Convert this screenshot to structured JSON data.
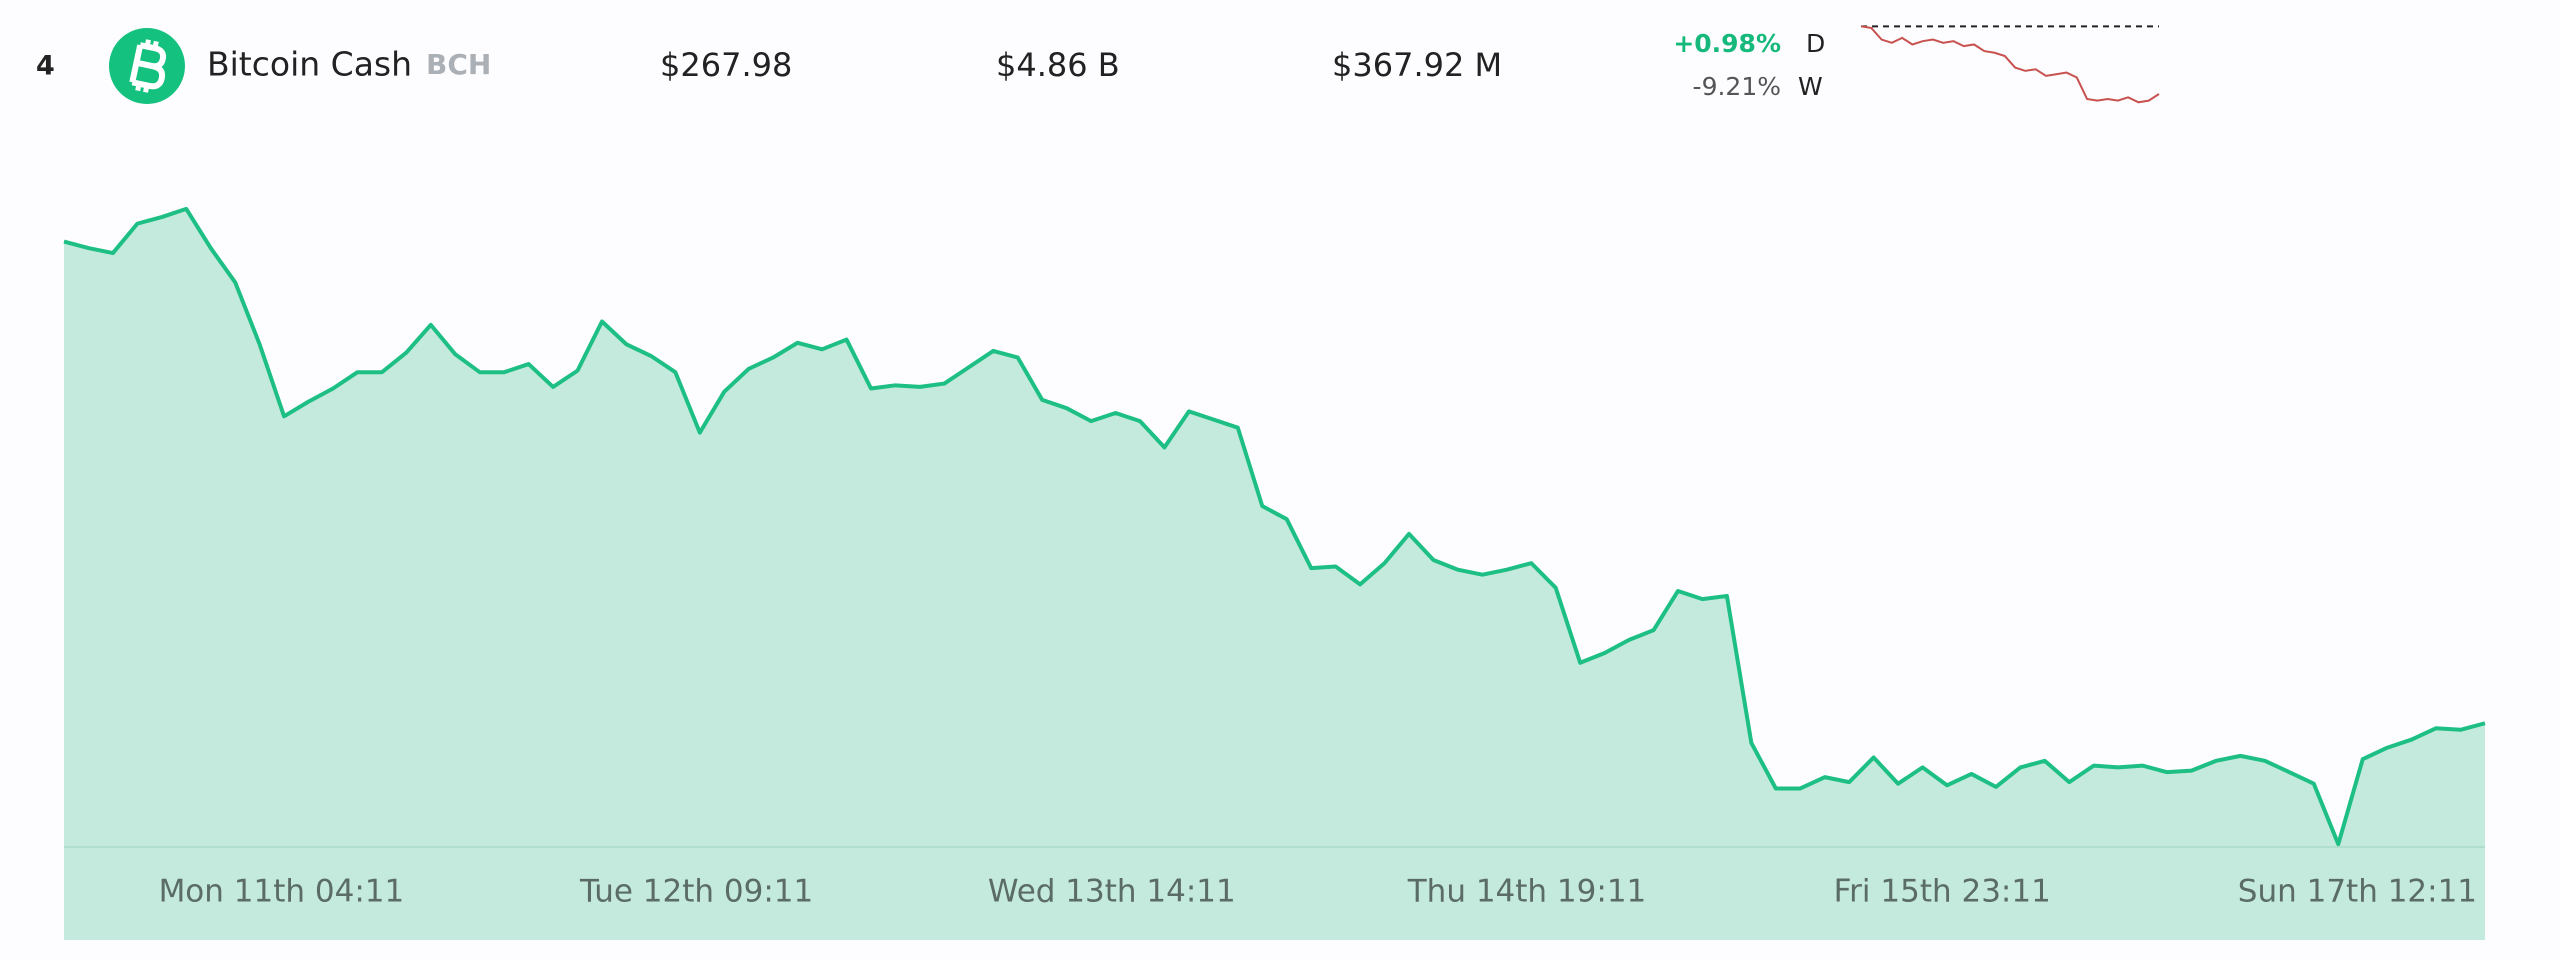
{
  "row": {
    "rank": "4",
    "name": "Bitcoin Cash",
    "symbol": "BCH",
    "price": "$267.98",
    "market_cap": "$4.86 B",
    "volume": "$367.92 M",
    "change_day": "+0.98%",
    "day_label": "D",
    "change_week": "-9.21%",
    "week_label": "W"
  },
  "chart_data": [
    {
      "type": "line",
      "color": "#c8524f",
      "ylim": [
        266,
        296
      ],
      "values": [
        295.15,
        294.55,
        290.32,
        289.11,
        290.92,
        288.51,
        289.71,
        290.32,
        289.11,
        289.71,
        287.9,
        288.51,
        286.09,
        285.48,
        284.28,
        280.05,
        278.84,
        279.45,
        277.03,
        277.63,
        278.24,
        276.42,
        268.57,
        267.97,
        268.57,
        267.97,
        269.18,
        267.36,
        267.97,
        270.39
      ]
    },
    {
      "type": "area",
      "color": "#1dbf84",
      "fill": "#c3eadc",
      "ylim": [
        261,
        298
      ],
      "x_labels": [
        "Mon 11th 04:11",
        "Tue 12th 09:11",
        "Wed 13th 14:11",
        "Thu 14th 19:11",
        "Fri 15th 23:11",
        "Sun 17th 12:11"
      ],
      "values": [
        295.15,
        294.78,
        294.5,
        296.16,
        296.53,
        296.99,
        294.78,
        292.85,
        289.35,
        285.29,
        286.12,
        286.86,
        287.78,
        287.78,
        288.89,
        290.45,
        288.79,
        287.78,
        287.78,
        288.24,
        286.95,
        287.87,
        290.64,
        289.35,
        288.7,
        287.78,
        284.37,
        286.68,
        287.97,
        288.61,
        289.44,
        289.07,
        289.62,
        286.86,
        287.04,
        286.95,
        287.14,
        288.06,
        288.98,
        288.61,
        286.22,
        285.75,
        285.02,
        285.48,
        285.02,
        283.54,
        285.57,
        285.11,
        284.65,
        280.23,
        279.49,
        276.73,
        276.82,
        275.81,
        277.01,
        278.66,
        277.19,
        276.64,
        276.36,
        276.64,
        277.01,
        275.62,
        271.39,
        271.94,
        272.68,
        273.23,
        275.44,
        274.98,
        275.16,
        266.87,
        264.3,
        264.3,
        264.94,
        264.66,
        266.05,
        264.57,
        265.49,
        264.48,
        265.12,
        264.39,
        265.49,
        265.86,
        264.66,
        265.59,
        265.49,
        265.59,
        265.22,
        265.31,
        265.86,
        266.14,
        265.86,
        265.22,
        264.57,
        261.16,
        265.95,
        266.6,
        267.06,
        267.7,
        267.61,
        267.98
      ]
    }
  ]
}
